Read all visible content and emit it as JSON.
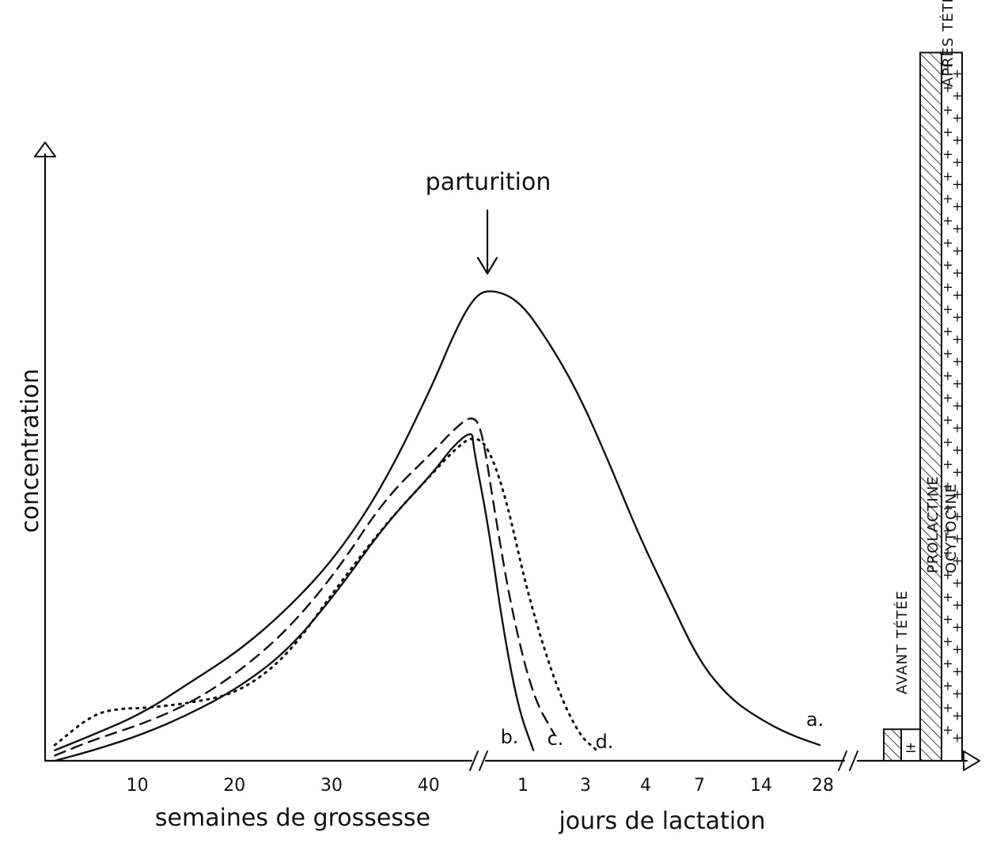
{
  "chart_data": {
    "type": "line",
    "ylabel": "concentration",
    "annotation": "parturition",
    "x_segments": [
      {
        "label": "semaines de grossesse",
        "ticks": [
          "10",
          "20",
          "30",
          "40"
        ]
      },
      {
        "label": "jours de lactation",
        "ticks": [
          "1",
          "3",
          "4",
          "7",
          "14",
          "28"
        ]
      }
    ],
    "x_ticks_lactation_all": [
      "1",
      "3",
      "4",
      "7",
      "14",
      "28"
    ],
    "series": [
      {
        "name": "a.",
        "style": "solid",
        "points": [
          [
            1,
            0.02
          ],
          [
            5,
            0.05
          ],
          [
            10,
            0.09
          ],
          [
            15,
            0.15
          ],
          [
            20,
            0.21
          ],
          [
            25,
            0.29
          ],
          [
            30,
            0.39
          ],
          [
            35,
            0.53
          ],
          [
            40,
            0.72
          ],
          [
            42,
            0.81
          ],
          [
            44,
            0.88
          ],
          [
            45,
            0.9
          ],
          [
            46,
            0.88
          ],
          [
            47,
            0.8
          ],
          [
            48,
            0.7
          ],
          [
            49,
            0.57
          ],
          [
            50,
            0.43
          ],
          [
            51,
            0.31
          ],
          [
            52,
            0.19
          ],
          [
            53,
            0.12
          ],
          [
            54,
            0.08
          ],
          [
            55,
            0.05
          ],
          [
            56,
            0.03
          ]
        ]
      },
      {
        "name": "b.",
        "style": "solid",
        "points": [
          [
            1,
            0.0
          ],
          [
            5,
            0.02
          ],
          [
            10,
            0.05
          ],
          [
            15,
            0.09
          ],
          [
            20,
            0.14
          ],
          [
            25,
            0.21
          ],
          [
            30,
            0.32
          ],
          [
            35,
            0.45
          ],
          [
            40,
            0.55
          ],
          [
            42,
            0.6
          ],
          [
            44,
            0.63
          ],
          [
            44.5,
            0.6
          ],
          [
            45,
            0.45
          ],
          [
            45.5,
            0.25
          ],
          [
            46,
            0.1
          ],
          [
            46.5,
            0.02
          ]
        ]
      },
      {
        "name": "c.",
        "style": "dashed",
        "points": [
          [
            1,
            0.01
          ],
          [
            5,
            0.04
          ],
          [
            10,
            0.07
          ],
          [
            15,
            0.11
          ],
          [
            20,
            0.17
          ],
          [
            25,
            0.25
          ],
          [
            30,
            0.36
          ],
          [
            35,
            0.5
          ],
          [
            40,
            0.59
          ],
          [
            42,
            0.63
          ],
          [
            44,
            0.66
          ],
          [
            44.8,
            0.63
          ],
          [
            45.2,
            0.48
          ],
          [
            45.8,
            0.28
          ],
          [
            46.5,
            0.12
          ],
          [
            47.2,
            0.05
          ]
        ]
      },
      {
        "name": "d.",
        "style": "dotted",
        "points": [
          [
            1,
            0.03
          ],
          [
            5,
            0.09
          ],
          [
            8,
            0.1
          ],
          [
            10,
            0.1
          ],
          [
            15,
            0.11
          ],
          [
            20,
            0.13
          ],
          [
            25,
            0.2
          ],
          [
            30,
            0.33
          ],
          [
            35,
            0.45
          ],
          [
            40,
            0.55
          ],
          [
            42,
            0.59
          ],
          [
            44,
            0.62
          ],
          [
            45,
            0.6
          ],
          [
            45.6,
            0.5
          ],
          [
            46.3,
            0.32
          ],
          [
            47.2,
            0.15
          ],
          [
            48,
            0.05
          ],
          [
            48.6,
            0.02
          ]
        ]
      }
    ],
    "bars": {
      "group_labels": [
        "AVANT TÉTÉE",
        "APRÈS TÉTÉE"
      ],
      "series_labels": [
        "PROLACTINE",
        "OCYTOCINE"
      ],
      "avant": {
        "prolactine": 0.06,
        "ocytocine": 0.06
      },
      "apres": {
        "prolactine": 1.35,
        "ocytocine": 1.35
      }
    }
  }
}
